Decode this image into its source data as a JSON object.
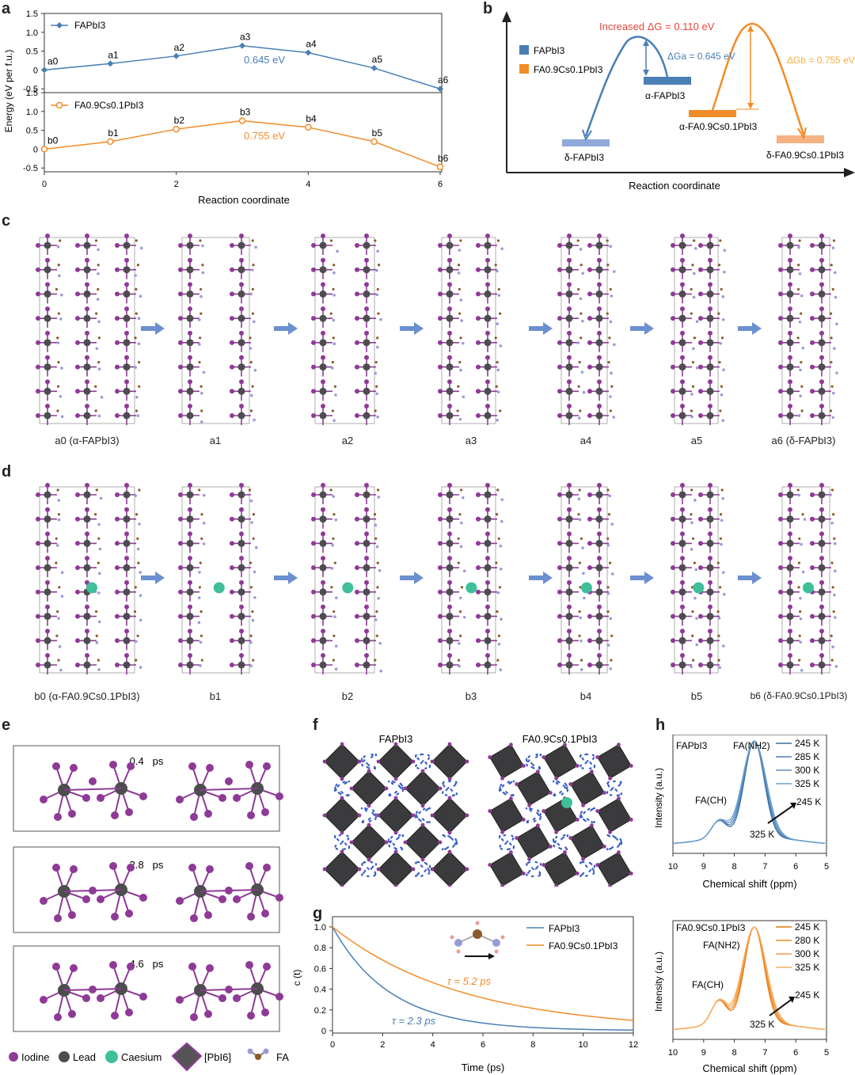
{
  "panels": {
    "a": "a",
    "b": "b",
    "c": "c",
    "d": "d",
    "e": "e",
    "f": "f",
    "g": "g",
    "h": "h"
  },
  "colors": {
    "fapbi": "#4a7fb5",
    "facs": "#f28c28",
    "iodine": "#8e3a96",
    "lead": "#4d4d4f",
    "caesium": "#3fbf9a",
    "arrow": "#6b8fcf"
  },
  "chart_data": [
    {
      "type": "line",
      "panel": "a-top",
      "series": [
        {
          "name": "FAPbI3",
          "x": [
            0,
            1,
            2,
            3,
            4,
            5,
            6
          ],
          "y": [
            0,
            0.17,
            0.37,
            0.645,
            0.46,
            0.05,
            -0.5
          ],
          "labels": [
            "a0",
            "a1",
            "a2",
            "a3",
            "a4",
            "a5",
            "a6"
          ]
        }
      ],
      "annotation": "0.645 eV",
      "yticks": [
        1.5,
        1.0,
        0.5,
        0,
        -0.5
      ],
      "ylim": [
        -0.6,
        1.5
      ]
    },
    {
      "type": "line",
      "panel": "a-bottom",
      "series": [
        {
          "name": "FA0.9Cs0.1PbI3",
          "x": [
            0,
            1,
            2,
            3,
            4,
            5,
            6
          ],
          "y": [
            0,
            0.2,
            0.53,
            0.755,
            0.58,
            0.2,
            -0.47
          ],
          "labels": [
            "b0",
            "b1",
            "b2",
            "b3",
            "b4",
            "b5",
            "b6"
          ]
        }
      ],
      "annotation": "0.755 eV",
      "yticks": [
        1.5,
        1.0,
        0.5,
        0,
        -0.5
      ],
      "xticks": [
        0,
        2,
        4,
        6
      ],
      "xlabel": "Reaction coordinate",
      "ylabel": "Energy (eV per f.u.)",
      "ylim": [
        -0.6,
        1.5
      ]
    },
    {
      "type": "line",
      "panel": "g",
      "series": [
        {
          "name": "FAPbI3",
          "tau": 2.3
        },
        {
          "name": "FA0.9Cs0.1PbI3",
          "tau": 5.2
        }
      ],
      "xticks": [
        0,
        2,
        4,
        6,
        8,
        10,
        12
      ],
      "yticks": [
        0,
        0.2,
        0.4,
        0.6,
        0.8,
        1.0
      ],
      "xlabel": "Time (ps)",
      "ylabel": "c (t)",
      "annotations": [
        "τ = 5.2 ps",
        "τ = 2.3 ps"
      ]
    }
  ],
  "panel_a": {
    "legend_top": "FAPbI3",
    "legend_bottom": "FA0.9Cs0.1PbI3",
    "ylabel": "Energy (eV per f.u.)",
    "xlabel": "Reaction coordinate",
    "barrier_top": "0.645 eV",
    "barrier_bottom": "0.755 eV"
  },
  "panel_b": {
    "title": "Increased ΔG = 0.110 eV",
    "legend": [
      "FAPbI3",
      "FA0.9Cs0.1PbI3"
    ],
    "dGa": "ΔGa = 0.645 eV",
    "dGb": "ΔGb = 0.755 eV",
    "alpha_fapbi": "α-FAPbI3",
    "delta_fapbi": "δ-FAPbI3",
    "alpha_facs": "α-FA0.9Cs0.1PbI3",
    "delta_facs": "δ-FA0.9Cs0.1PbI3",
    "xlabel": "Reaction coordinate"
  },
  "panel_c": {
    "labels": [
      "a0 (α-FAPbI3)",
      "a1",
      "a2",
      "a3",
      "a4",
      "a5",
      "a6 (δ-FAPbI3)"
    ]
  },
  "panel_d": {
    "labels": [
      "b0 (α-FA0.9Cs0.1PbI3)",
      "b1",
      "b2",
      "b3",
      "b4",
      "b5",
      "b6 (δ-FA0.9Cs0.1PbI3)"
    ]
  },
  "panel_e": {
    "times": [
      "0.45 ps",
      "2.85 ps",
      "4.65 ps"
    ],
    "legend": [
      "Iodine",
      "Lead",
      "Caesium",
      "[PbI6]",
      "FA"
    ]
  },
  "panel_f": {
    "left": "FAPbI3",
    "right": "FA0.9Cs0.1PbI3"
  },
  "panel_h": {
    "top": {
      "compound": "FAPbI3",
      "peak1": "FA(NH2)",
      "peak2": "FA(CH)",
      "temps": [
        "245 K",
        "285 K",
        "300 K",
        "325 K"
      ],
      "arrow_top": "245 K",
      "arrow_bottom": "325 K"
    },
    "bottom": {
      "compound": "FA0.9Cs0.1PbI3",
      "peak1": "FA(NH2)",
      "peak2": "FA(CH)",
      "temps": [
        "245 K",
        "280 K",
        "300 K",
        "325 K"
      ],
      "arrow_top": "245 K",
      "arrow_bottom": "325 K"
    },
    "xticks": [
      10,
      9,
      8,
      7,
      6,
      5
    ],
    "xlabel": "Chemical shift (ppm)",
    "ylabel": "Intensity (a.u.)"
  }
}
